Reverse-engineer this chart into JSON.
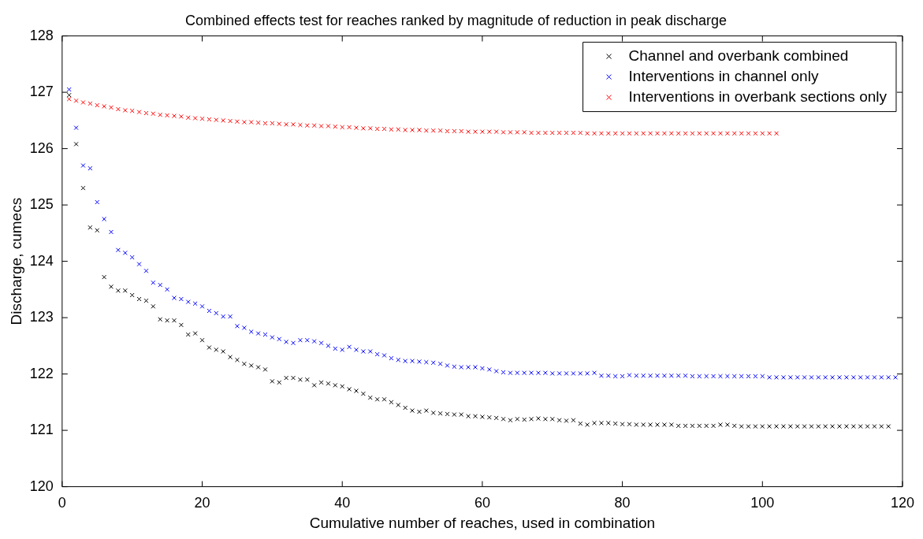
{
  "chart_data": {
    "type": "scatter",
    "title": "Combined effects test for reaches ranked by magnitude of reduction in peak discharge",
    "xlabel": "Cumulative number of reaches, used in combination",
    "ylabel": "Discharge, cumecs",
    "xlim": [
      0,
      120
    ],
    "xticks": [
      0,
      20,
      40,
      60,
      80,
      100,
      120
    ],
    "ylim": [
      120,
      128
    ],
    "yticks": [
      120,
      121,
      122,
      123,
      124,
      125,
      126,
      127,
      128
    ],
    "grid": false,
    "legend": "top right",
    "marker": "cross",
    "x": [
      1,
      2,
      3,
      4,
      5,
      6,
      7,
      8,
      9,
      10,
      11,
      12,
      13,
      14,
      15,
      16,
      17,
      18,
      19,
      20,
      21,
      22,
      23,
      24,
      25,
      26,
      27,
      28,
      29,
      30,
      31,
      32,
      33,
      34,
      35,
      36,
      37,
      38,
      39,
      40,
      41,
      42,
      43,
      44,
      45,
      46,
      47,
      48,
      49,
      50,
      51,
      52,
      53,
      54,
      55,
      56,
      57,
      58,
      59,
      60,
      61,
      62,
      63,
      64,
      65,
      66,
      67,
      68,
      69,
      70,
      71,
      72,
      73,
      74,
      75,
      76,
      77,
      78,
      79,
      80,
      81,
      82,
      83,
      84,
      85,
      86,
      87,
      88,
      89,
      90,
      91,
      92,
      93,
      94,
      95,
      96,
      97,
      98,
      99,
      100,
      101,
      102,
      103,
      104,
      105,
      106,
      107,
      108,
      109,
      110,
      111,
      112,
      113,
      114,
      115,
      116,
      117,
      118,
      119
    ],
    "series": [
      {
        "name": "Channel and overbank combined",
        "color": "#000000",
        "values": [
          126.95,
          126.08,
          125.3,
          124.6,
          124.55,
          123.72,
          123.55,
          123.48,
          123.48,
          123.4,
          123.33,
          123.3,
          123.2,
          122.97,
          122.95,
          122.95,
          122.87,
          122.7,
          122.72,
          122.6,
          122.47,
          122.43,
          122.4,
          122.3,
          122.25,
          122.18,
          122.15,
          122.12,
          122.08,
          121.87,
          121.85,
          121.93,
          121.93,
          121.9,
          121.9,
          121.8,
          121.85,
          121.83,
          121.8,
          121.78,
          121.73,
          121.7,
          121.65,
          121.58,
          121.55,
          121.55,
          121.5,
          121.45,
          121.4,
          121.35,
          121.33,
          121.35,
          121.31,
          121.3,
          121.29,
          121.28,
          121.28,
          121.25,
          121.25,
          121.24,
          121.23,
          121.22,
          121.2,
          121.18,
          121.2,
          121.19,
          121.2,
          121.21,
          121.2,
          121.2,
          121.18,
          121.17,
          121.18,
          121.12,
          121.1,
          121.13,
          121.13,
          121.13,
          121.12,
          121.11,
          121.11,
          121.1,
          121.1,
          121.1,
          121.1,
          121.1,
          121.1,
          121.08,
          121.08,
          121.08,
          121.08,
          121.08,
          121.08,
          121.1,
          121.1,
          121.08,
          121.07,
          121.07,
          121.07,
          121.07,
          121.07,
          121.07,
          121.07,
          121.07,
          121.07,
          121.07,
          121.07,
          121.07,
          121.07,
          121.07,
          121.07,
          121.07,
          121.07,
          121.07,
          121.07,
          121.07,
          121.07,
          121.07,
          null
        ]
      },
      {
        "name": "Interventions in channel only",
        "color": "#0000ff",
        "values": [
          127.05,
          126.37,
          125.7,
          125.65,
          125.05,
          124.75,
          124.52,
          124.2,
          124.15,
          124.07,
          123.95,
          123.83,
          123.62,
          123.58,
          123.5,
          123.35,
          123.33,
          123.28,
          123.25,
          123.2,
          123.12,
          123.08,
          123.02,
          123.02,
          122.85,
          122.82,
          122.75,
          122.72,
          122.7,
          122.65,
          122.62,
          122.57,
          122.55,
          122.6,
          122.6,
          122.58,
          122.55,
          122.5,
          122.45,
          122.43,
          122.48,
          122.43,
          122.4,
          122.4,
          122.35,
          122.33,
          122.28,
          122.25,
          122.23,
          122.23,
          122.22,
          122.21,
          122.2,
          122.18,
          122.15,
          122.13,
          122.12,
          122.12,
          122.12,
          122.1,
          122.08,
          122.05,
          122.03,
          122.02,
          122.02,
          122.02,
          122.02,
          122.02,
          122.02,
          122.01,
          122.01,
          122.01,
          122.01,
          122.01,
          122.01,
          122.02,
          121.97,
          121.97,
          121.96,
          121.96,
          121.98,
          121.97,
          121.97,
          121.97,
          121.97,
          121.97,
          121.97,
          121.97,
          121.97,
          121.96,
          121.96,
          121.96,
          121.96,
          121.96,
          121.96,
          121.96,
          121.96,
          121.96,
          121.96,
          121.96,
          121.94,
          121.94,
          121.94,
          121.94,
          121.94,
          121.94,
          121.94,
          121.94,
          121.94,
          121.94,
          121.94,
          121.94,
          121.94,
          121.94,
          121.94,
          121.94,
          121.94,
          121.94,
          121.94
        ]
      },
      {
        "name": "Interventions in overbank sections only",
        "color": "#ff0000",
        "values": [
          126.88,
          126.85,
          126.82,
          126.8,
          126.77,
          126.75,
          126.73,
          126.7,
          126.68,
          126.67,
          126.65,
          126.63,
          126.62,
          126.6,
          126.59,
          126.58,
          126.57,
          126.55,
          126.54,
          126.53,
          126.52,
          126.51,
          126.5,
          126.49,
          126.48,
          126.47,
          126.47,
          126.46,
          126.45,
          126.45,
          126.44,
          126.43,
          126.43,
          126.42,
          126.41,
          126.41,
          126.4,
          126.4,
          126.39,
          126.38,
          126.38,
          126.37,
          126.36,
          126.36,
          126.35,
          126.35,
          126.34,
          126.34,
          126.33,
          126.33,
          126.33,
          126.32,
          126.32,
          126.32,
          126.31,
          126.31,
          126.31,
          126.3,
          126.3,
          126.3,
          126.3,
          126.3,
          126.29,
          126.29,
          126.29,
          126.29,
          126.28,
          126.28,
          126.28,
          126.28,
          126.28,
          126.28,
          126.28,
          126.28,
          126.27,
          126.27,
          126.27,
          126.27,
          126.27,
          126.27,
          126.27,
          126.27,
          126.27,
          126.27,
          126.27,
          126.27,
          126.27,
          126.27,
          126.27,
          126.27,
          126.27,
          126.27,
          126.27,
          126.27,
          126.27,
          126.27,
          126.27,
          126.27,
          126.27,
          126.27,
          126.27,
          126.27,
          null,
          null,
          null,
          null,
          null,
          null,
          null,
          null,
          null,
          null,
          null,
          null,
          null,
          null,
          null,
          null,
          null
        ]
      }
    ]
  }
}
